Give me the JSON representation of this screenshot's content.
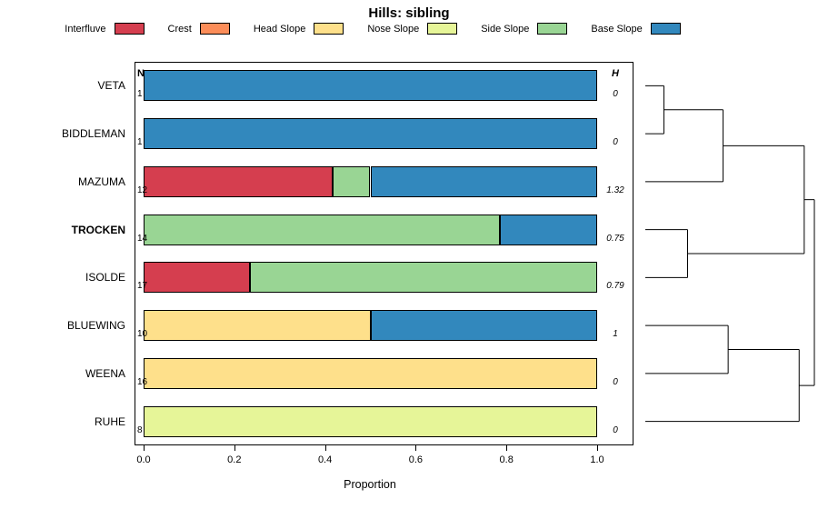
{
  "title": "Hills: sibling",
  "legend": [
    {
      "label": "Interfluve",
      "color": "#d53e4f"
    },
    {
      "label": "Crest",
      "color": "#fc8d59"
    },
    {
      "label": "Head Slope",
      "color": "#fee08b"
    },
    {
      "label": "Nose Slope",
      "color": "#e6f598"
    },
    {
      "label": "Side Slope",
      "color": "#99d594"
    },
    {
      "label": "Base Slope",
      "color": "#3288bd"
    }
  ],
  "chart_data": {
    "type": "bar",
    "orientation": "horizontal",
    "stacked": true,
    "title": "Hills: sibling",
    "xlabel": "Proportion",
    "xlim": [
      0,
      1
    ],
    "xticks": [
      0,
      0.2,
      0.4,
      0.6,
      0.8,
      1
    ],
    "columns": {
      "left": "N",
      "right": "H"
    },
    "categories": [
      "Interfluve",
      "Crest",
      "Head Slope",
      "Nose Slope",
      "Side Slope",
      "Base Slope"
    ],
    "rows": [
      {
        "label": "VETA",
        "bold": false,
        "n": 1,
        "h": "0",
        "segments": [
          {
            "category": "Base Slope",
            "value": 1.0
          }
        ]
      },
      {
        "label": "BIDDLEMAN",
        "bold": false,
        "n": 1,
        "h": "0",
        "segments": [
          {
            "category": "Base Slope",
            "value": 1.0
          }
        ]
      },
      {
        "label": "MAZUMA",
        "bold": false,
        "n": 12,
        "h": "1.32",
        "segments": [
          {
            "category": "Interfluve",
            "value": 0.417
          },
          {
            "category": "Side Slope",
            "value": 0.083
          },
          {
            "category": "Base Slope",
            "value": 0.5
          }
        ]
      },
      {
        "label": "TROCKEN",
        "bold": true,
        "n": 14,
        "h": "0.75",
        "segments": [
          {
            "category": "Side Slope",
            "value": 0.786
          },
          {
            "category": "Base Slope",
            "value": 0.214
          }
        ]
      },
      {
        "label": "ISOLDE",
        "bold": false,
        "n": 17,
        "h": "0.79",
        "segments": [
          {
            "category": "Interfluve",
            "value": 0.235
          },
          {
            "category": "Side Slope",
            "value": 0.765
          }
        ]
      },
      {
        "label": "BLUEWING",
        "bold": false,
        "n": 10,
        "h": "1",
        "segments": [
          {
            "category": "Head Slope",
            "value": 0.5
          },
          {
            "category": "Base Slope",
            "value": 0.5
          }
        ]
      },
      {
        "label": "WEENA",
        "bold": false,
        "n": 16,
        "h": "0",
        "segments": [
          {
            "category": "Head Slope",
            "value": 1.0
          }
        ]
      },
      {
        "label": "RUHE",
        "bold": false,
        "n": 8,
        "h": "0",
        "segments": [
          {
            "category": "Nose Slope",
            "value": 1.0
          }
        ]
      }
    ],
    "dendrogram": {
      "legend_position": "right",
      "merges": [
        [
          "VETA",
          "BIDDLEMAN",
          0.11
        ],
        [
          "M1",
          "MAZUMA",
          0.46
        ],
        [
          "TROCKEN",
          "ISOLDE",
          0.25
        ],
        [
          "M2",
          "M3",
          0.94
        ],
        [
          "BLUEWING",
          "WEENA",
          0.49
        ],
        [
          "M5",
          "RUHE",
          0.91
        ],
        [
          "M4",
          "M6",
          1.0
        ]
      ]
    }
  }
}
